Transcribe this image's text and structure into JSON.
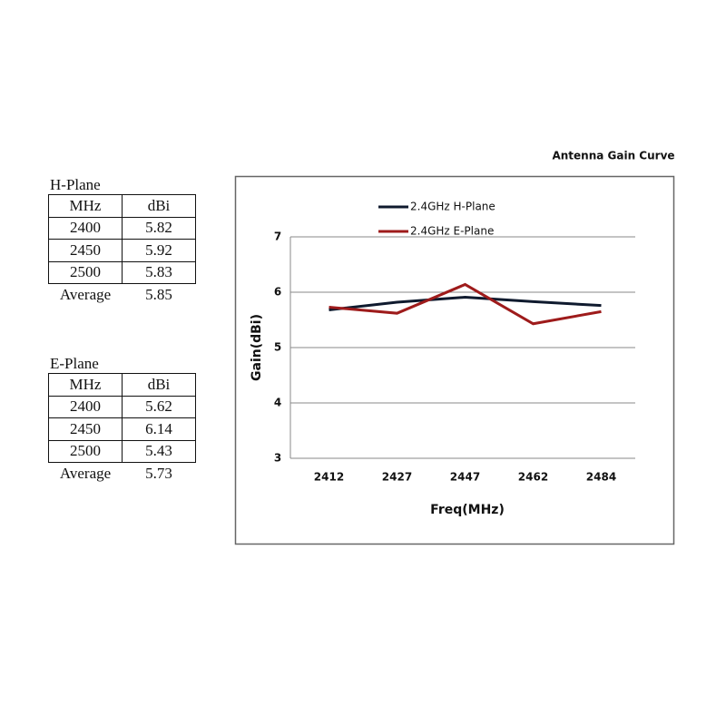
{
  "tables": [
    {
      "title": "H-Plane",
      "header": [
        "MHz",
        "dBi"
      ],
      "rows": [
        [
          "2400",
          "5.82"
        ],
        [
          "2450",
          "5.92"
        ],
        [
          "2500",
          "5.83"
        ]
      ],
      "average": [
        "Average",
        "5.85"
      ]
    },
    {
      "title": "E-Plane",
      "header": [
        "MHz",
        "dBi"
      ],
      "rows": [
        [
          "2400",
          "5.62"
        ],
        [
          "2450",
          "6.14"
        ],
        [
          "2500",
          "5.43"
        ]
      ],
      "average": [
        "Average",
        "5.73"
      ]
    }
  ],
  "chart_data": {
    "type": "line",
    "title": "Antenna Gain Curve",
    "x_label": "Freq(MHz)",
    "y_label": "Gain(dBi)",
    "categories": [
      "2412",
      "2427",
      "2447",
      "2462",
      "2484"
    ],
    "series": [
      {
        "name": "2.4GHz H-Plane",
        "color": "#0f1a2e",
        "values": [
          5.68,
          5.82,
          5.91,
          5.83,
          5.76
        ]
      },
      {
        "name": "2.4GHz E-Plane",
        "color": "#9e1b1b",
        "values": [
          5.73,
          5.62,
          6.14,
          5.43,
          5.65
        ]
      }
    ],
    "ylim": [
      3,
      7
    ],
    "yticks": [
      3,
      4,
      5,
      6,
      7
    ],
    "grid": true
  }
}
